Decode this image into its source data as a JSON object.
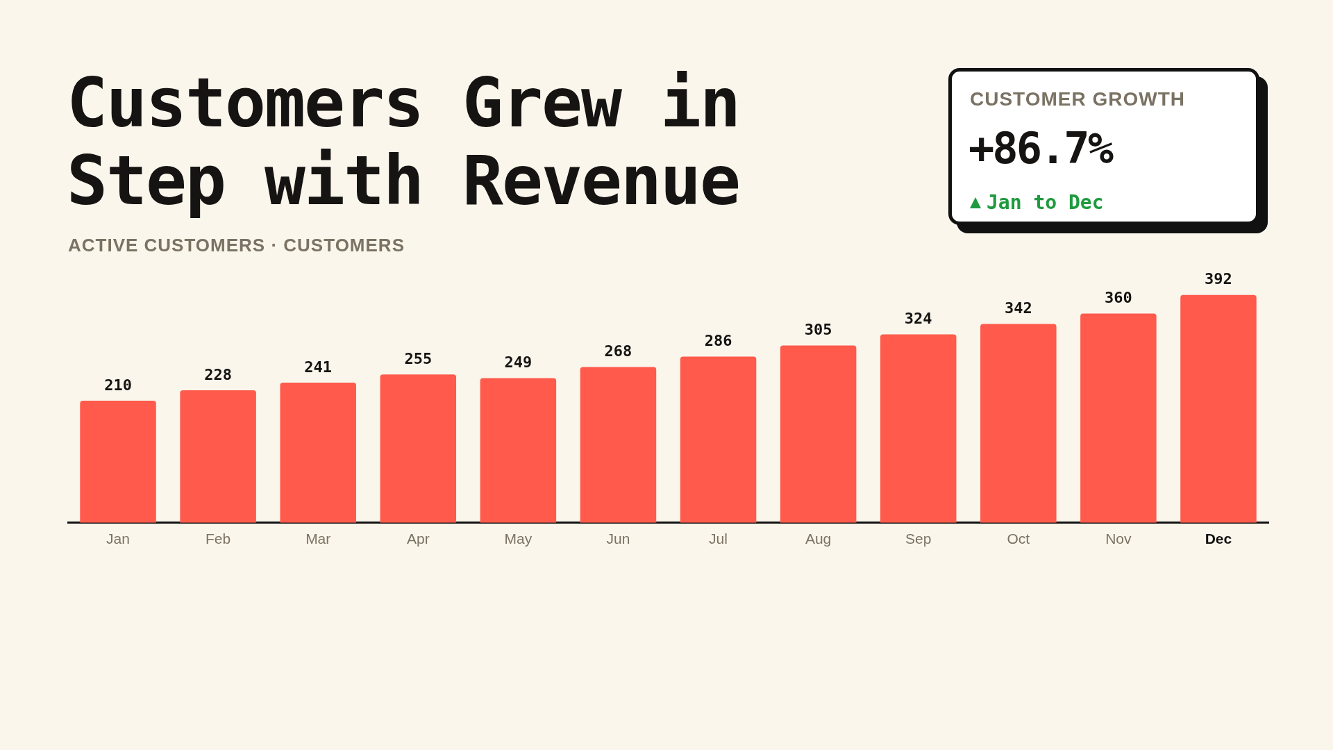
{
  "chart_data": {
    "type": "bar",
    "title": "Customers Grew in Step with Revenue",
    "subtitle": "ACTIVE CUSTOMERS · CUSTOMERS",
    "categories": [
      "Jan",
      "Feb",
      "Mar",
      "Apr",
      "May",
      "Jun",
      "Jul",
      "Aug",
      "Sep",
      "Oct",
      "Nov",
      "Dec"
    ],
    "values": [
      210,
      228,
      241,
      255,
      249,
      268,
      286,
      305,
      324,
      342,
      360,
      392
    ],
    "color": "#ff5a4b",
    "data_labels": true,
    "grid": false,
    "annotations": [
      "CUSTOMER GROWTH",
      "+86.7%",
      "Jan to Dec"
    ]
  }
}
